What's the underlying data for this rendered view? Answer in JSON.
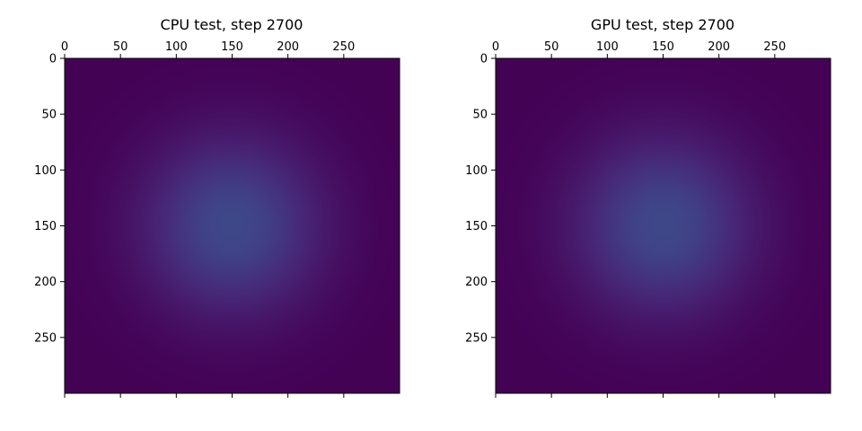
{
  "colors": {
    "background": "#ffffff",
    "axis": "#000000",
    "colormap": "viridis"
  },
  "chart_data": [
    {
      "type": "heatmap",
      "title": "CPU test, step 2700",
      "x_ticks": [
        0,
        50,
        100,
        150,
        200,
        250
      ],
      "y_ticks": [
        0,
        50,
        100,
        150,
        200,
        250
      ],
      "xlim": [
        0,
        300
      ],
      "ylim": [
        300,
        0
      ],
      "x_axis_position": "top",
      "grid": false,
      "field": {
        "shape": "gaussian",
        "center_x": 150,
        "center_y": 150,
        "sigma": 55,
        "peak_value": 0.22,
        "value_range": [
          0,
          1
        ]
      }
    },
    {
      "type": "heatmap",
      "title": "GPU test, step 2700",
      "x_ticks": [
        0,
        50,
        100,
        150,
        200,
        250
      ],
      "y_ticks": [
        0,
        50,
        100,
        150,
        200,
        250
      ],
      "xlim": [
        0,
        300
      ],
      "ylim": [
        300,
        0
      ],
      "x_axis_position": "top",
      "grid": false,
      "field": {
        "shape": "gaussian",
        "center_x": 150,
        "center_y": 150,
        "sigma": 55,
        "peak_value": 0.22,
        "value_range": [
          0,
          1
        ]
      }
    }
  ]
}
